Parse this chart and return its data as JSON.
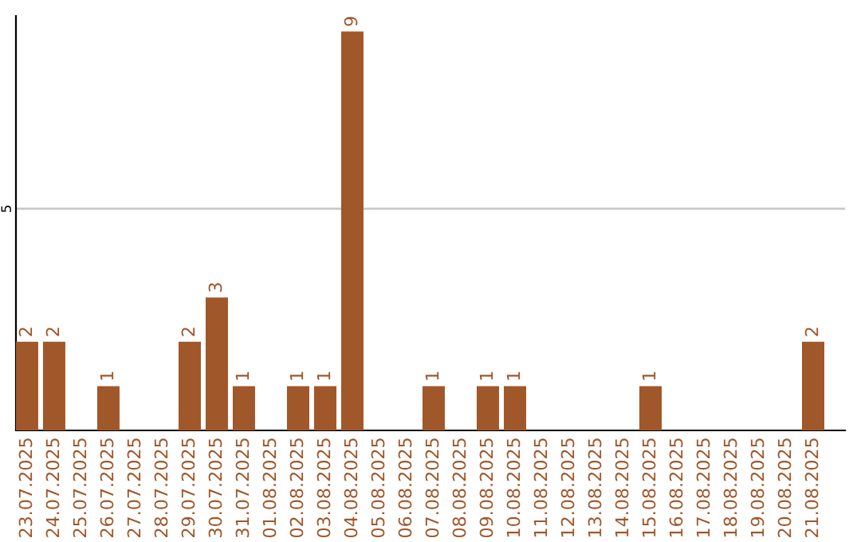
{
  "chart_data": {
    "type": "bar",
    "categories": [
      "23.07.2025",
      "24.07.2025",
      "25.07.2025",
      "26.07.2025",
      "27.07.2025",
      "28.07.2025",
      "29.07.2025",
      "30.07.2025",
      "31.07.2025",
      "01.08.2025",
      "02.08.2025",
      "03.08.2025",
      "04.08.2025",
      "05.08.2025",
      "06.08.2025",
      "07.08.2025",
      "08.08.2025",
      "09.08.2025",
      "10.08.2025",
      "11.08.2025",
      "12.08.2025",
      "13.08.2025",
      "14.08.2025",
      "15.08.2025",
      "16.08.2025",
      "17.08.2025",
      "18.08.2025",
      "19.08.2025",
      "20.08.2025",
      "21.08.2025"
    ],
    "values": [
      2,
      2,
      0,
      1,
      0,
      0,
      2,
      3,
      1,
      0,
      1,
      1,
      9,
      0,
      0,
      1,
      0,
      1,
      1,
      0,
      0,
      0,
      0,
      1,
      0,
      0,
      0,
      0,
      0,
      2
    ],
    "value_labels": [
      "2",
      "2",
      null,
      "1",
      null,
      null,
      "2",
      "3",
      "1",
      null,
      "1",
      "1",
      "9",
      null,
      null,
      "1",
      null,
      "1",
      "1",
      null,
      null,
      null,
      null,
      "1",
      null,
      null,
      null,
      null,
      null,
      "2"
    ],
    "color": "#a0572a",
    "ylim": [
      0,
      9.35
    ],
    "yticks": [
      5
    ],
    "grid": "y"
  }
}
